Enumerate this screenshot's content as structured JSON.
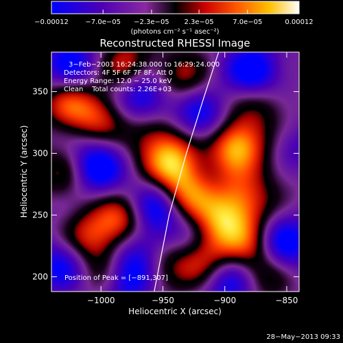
{
  "chart_data": {
    "type": "heatmap",
    "title": "Reconstructed RHESSI Image",
    "xlabel": "Heliocentric X (arcsec)",
    "ylabel": "Heliocentric Y (arcsec)",
    "xlim": [
      -1040,
      -840
    ],
    "ylim": [
      188,
      382
    ],
    "x_ticks": [
      -1000,
      -950,
      -900,
      -850
    ],
    "x_tick_labels": [
      "−1000",
      "−950",
      "−900",
      "−850"
    ],
    "y_ticks": [
      200,
      250,
      300,
      350
    ],
    "y_tick_labels": [
      "200",
      "250",
      "300",
      "350"
    ],
    "colorbar": {
      "range": [
        -0.00012,
        0.00012
      ],
      "ticks": [
        -0.00012,
        -7e-05,
        -2.3e-05,
        2.3e-05,
        7e-05,
        0.00012
      ],
      "tick_labels": [
        "−0.00012",
        "−7.0e−05",
        "−2.3e−05",
        "2.3e−05",
        "7.0e−05",
        "0.00012"
      ],
      "unit_label": "(photons cm⁻² s⁻¹ asec⁻²)"
    },
    "annotations": [
      "3−Feb−2003 16:24:38.000 to 16:29:24.000",
      "Detectors: 4F 5F 6F 7F 8F, Att 0",
      "Energy Range: 12.0 − 25.0 keV",
      "Clean    Total counts: 2.26E+03"
    ],
    "peak_label": "Position of Peak = [−891,307]",
    "peak": [
      -891,
      307
    ],
    "limb_curve": [
      [
        -957,
        188
      ],
      [
        -945,
        250
      ],
      [
        -931,
        300
      ],
      [
        -917,
        345
      ],
      [
        -905,
        382
      ]
    ],
    "intensity_peaks": [
      {
        "x": -891,
        "y": 307,
        "level": 1.0
      },
      {
        "x": -943,
        "y": 293,
        "level": 0.9
      },
      {
        "x": -931,
        "y": 267,
        "level": 0.75
      },
      {
        "x": -906,
        "y": 245,
        "level": 0.8
      },
      {
        "x": -886,
        "y": 262,
        "level": 0.6
      },
      {
        "x": -880,
        "y": 228,
        "level": 0.55
      },
      {
        "x": -982,
        "y": 246,
        "level": 0.7
      },
      {
        "x": -1011,
        "y": 232,
        "level": 0.6
      },
      {
        "x": -1026,
        "y": 340,
        "level": 0.6
      },
      {
        "x": -978,
        "y": 372,
        "level": 0.6
      },
      {
        "x": -1001,
        "y": 330,
        "level": 0.55
      },
      {
        "x": -961,
        "y": 318,
        "level": 0.5
      },
      {
        "x": -953,
        "y": 210,
        "level": 0.55
      },
      {
        "x": -918,
        "y": 215,
        "level": 0.6
      },
      {
        "x": -870,
        "y": 342,
        "level": 0.45
      },
      {
        "x": -856,
        "y": 290,
        "level": 0.4
      },
      {
        "x": -995,
        "y": 205,
        "level": 0.5
      },
      {
        "x": -935,
        "y": 360,
        "level": 0.5
      },
      {
        "x": -1029,
        "y": 285,
        "level": 0.45
      },
      {
        "x": -870,
        "y": 200,
        "level": 0.4
      }
    ],
    "intensity_troughs": [
      {
        "x": -1005,
        "y": 290,
        "level": -0.8
      },
      {
        "x": -956,
        "y": 258,
        "level": -0.7
      },
      {
        "x": -966,
        "y": 345,
        "level": -0.8
      },
      {
        "x": -920,
        "y": 330,
        "level": -0.6
      },
      {
        "x": -876,
        "y": 365,
        "level": -0.8
      },
      {
        "x": -853,
        "y": 228,
        "level": -0.7
      },
      {
        "x": -980,
        "y": 200,
        "level": -0.8
      },
      {
        "x": -1031,
        "y": 212,
        "level": -0.6
      },
      {
        "x": -1024,
        "y": 372,
        "level": -0.6
      },
      {
        "x": -895,
        "y": 195,
        "level": -0.6
      },
      {
        "x": -848,
        "y": 300,
        "level": -0.5
      },
      {
        "x": -965,
        "y": 222,
        "level": -0.6
      },
      {
        "x": -925,
        "y": 238,
        "level": -0.4
      }
    ]
  },
  "footer": {
    "timestamp": "28−May−2013 09:33"
  }
}
